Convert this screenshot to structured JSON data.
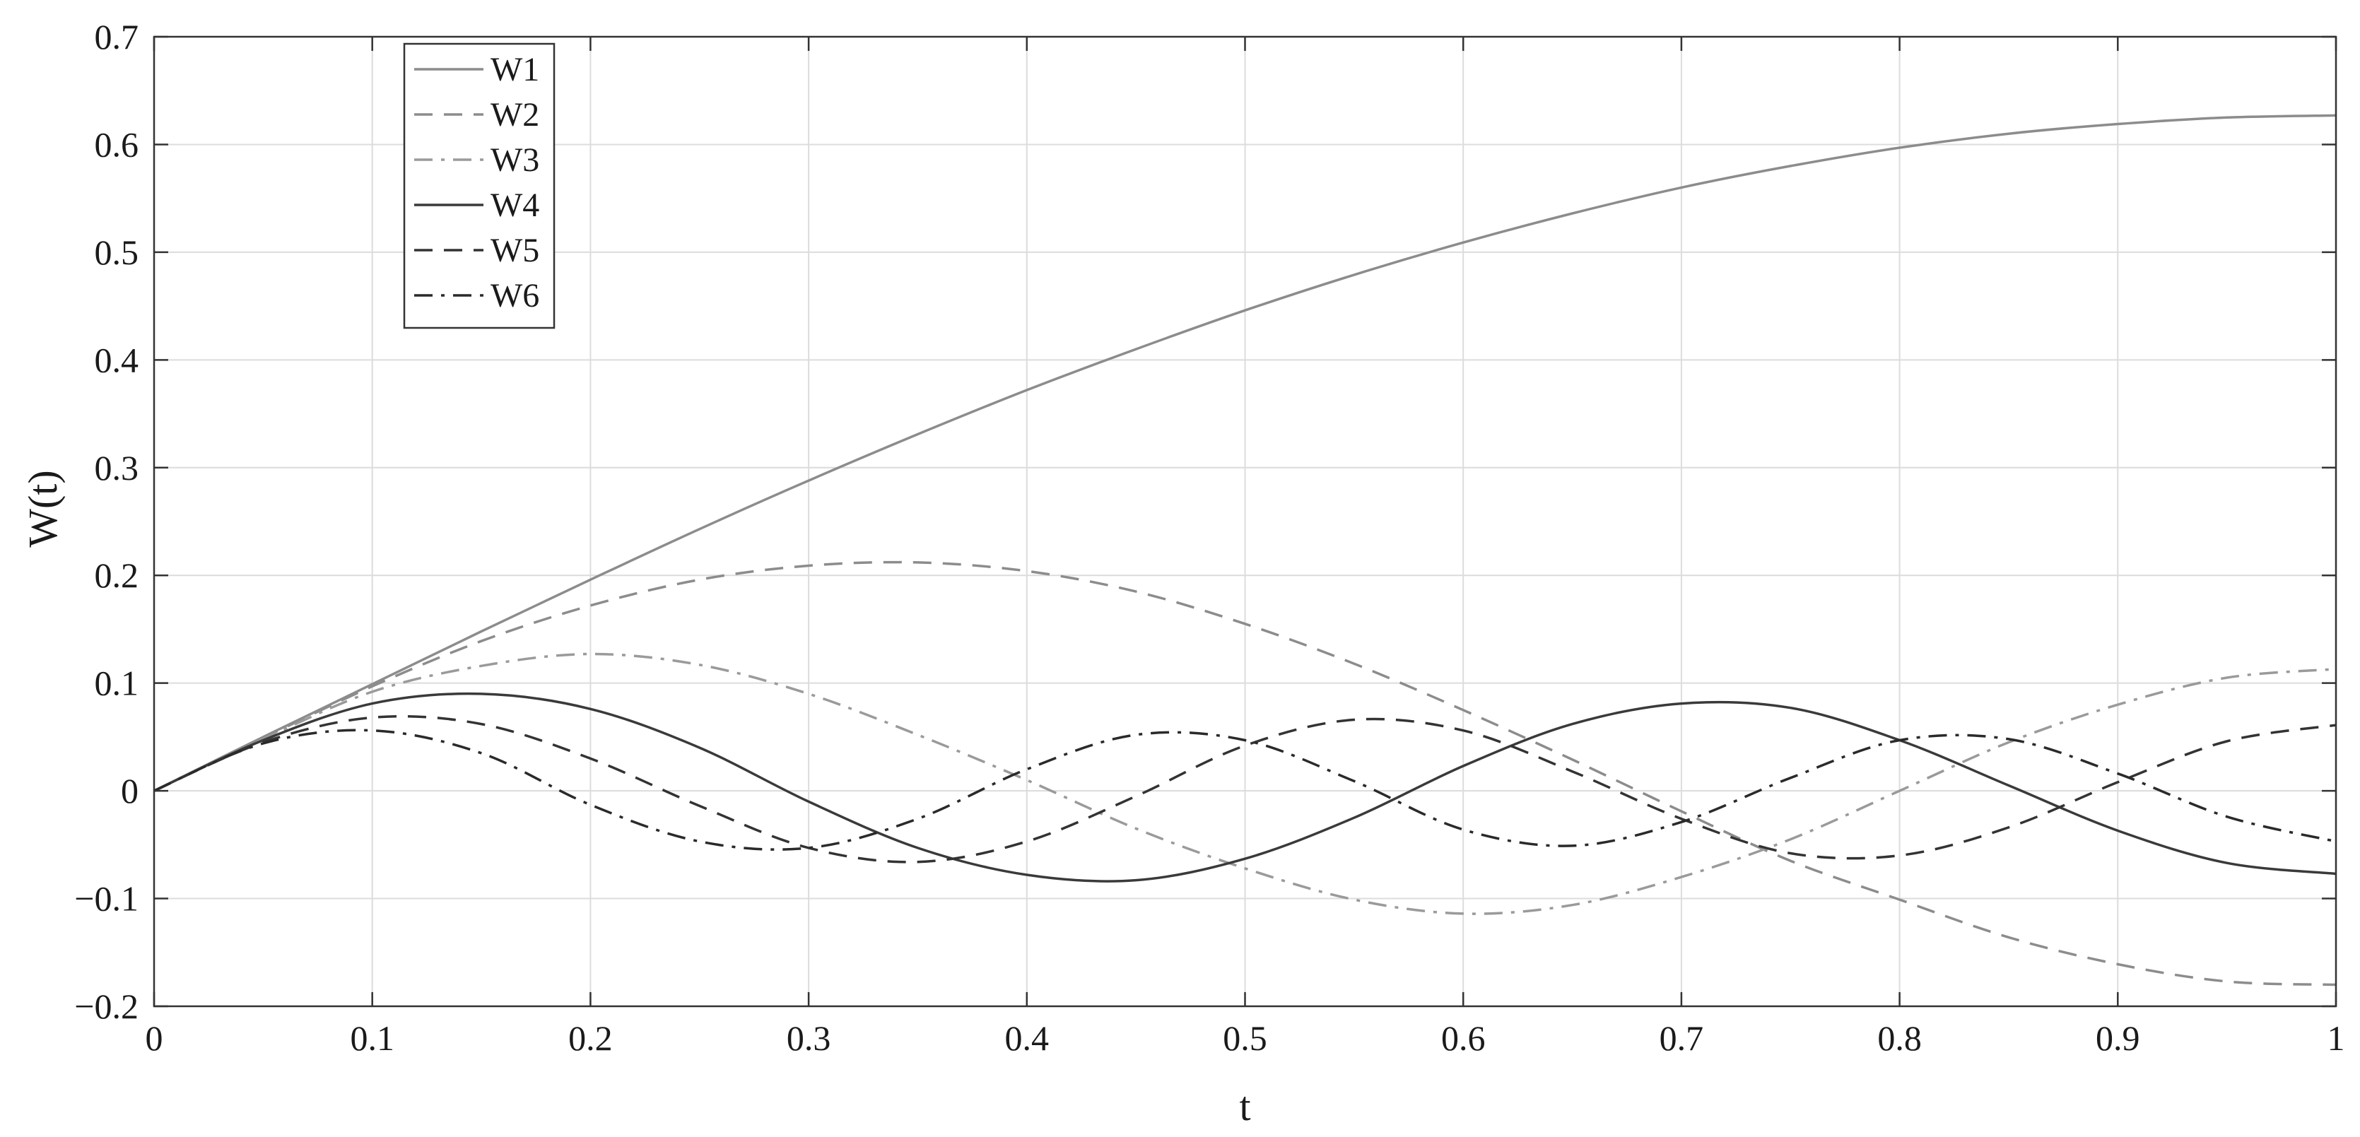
{
  "chart_data": {
    "type": "line",
    "title": "",
    "xlabel": "t",
    "ylabel": "W(t)",
    "xlim": [
      0,
      1
    ],
    "ylim": [
      -0.2,
      0.7
    ],
    "xticks": [
      0,
      0.1,
      0.2,
      0.3,
      0.4,
      0.5,
      0.6,
      0.7,
      0.8,
      0.9,
      1
    ],
    "xtick_labels": [
      "0",
      "0.1",
      "0.2",
      "0.3",
      "0.4",
      "0.5",
      "0.6",
      "0.7",
      "0.8",
      "0.9",
      "1"
    ],
    "yticks": [
      -0.2,
      -0.1,
      0,
      0.1,
      0.2,
      0.3,
      0.4,
      0.5,
      0.6,
      0.7
    ],
    "ytick_labels": [
      "−0.2",
      "−0.1",
      "0",
      "0.1",
      "0.2",
      "0.3",
      "0.4",
      "0.5",
      "0.6",
      "0.7"
    ],
    "grid": true,
    "legend_position": "top-left",
    "x": [
      0,
      0.05,
      0.1,
      0.15,
      0.2,
      0.25,
      0.3,
      0.35,
      0.4,
      0.45,
      0.5,
      0.55,
      0.6,
      0.65,
      0.7,
      0.75,
      0.8,
      0.85,
      0.9,
      0.95,
      1
    ],
    "series": [
      {
        "name": "W1",
        "color": "#8c8c8c",
        "dash": "solid",
        "values": [
          0,
          0.05,
          0.099,
          0.148,
          0.196,
          0.243,
          0.288,
          0.331,
          0.372,
          0.41,
          0.446,
          0.479,
          0.509,
          0.536,
          0.56,
          0.58,
          0.597,
          0.61,
          0.619,
          0.625,
          0.627
        ]
      },
      {
        "name": "W2",
        "color": "#8c8c8c",
        "dash": "dashed",
        "values": [
          0,
          0.049,
          0.097,
          0.139,
          0.172,
          0.196,
          0.209,
          0.212,
          0.204,
          0.185,
          0.155,
          0.118,
          0.075,
          0.029,
          -0.019,
          -0.065,
          -0.101,
          -0.136,
          -0.161,
          -0.177,
          -0.18
        ]
      },
      {
        "name": "W3",
        "color": "#9a9a9a",
        "dash": "dashdot",
        "values": [
          0,
          0.048,
          0.092,
          0.116,
          0.127,
          0.117,
          0.09,
          0.052,
          0.01,
          -0.035,
          -0.072,
          -0.101,
          -0.114,
          -0.106,
          -0.08,
          -0.045,
          0,
          0.045,
          0.08,
          0.105,
          0.113
        ]
      },
      {
        "name": "W4",
        "color": "#3a3a3a",
        "dash": "solid",
        "values": [
          0,
          0.047,
          0.081,
          0.09,
          0.076,
          0.04,
          -0.01,
          -0.053,
          -0.078,
          -0.083,
          -0.063,
          -0.025,
          0.023,
          0.062,
          0.081,
          0.077,
          0.047,
          0.005,
          -0.037,
          -0.067,
          -0.077
        ]
      },
      {
        "name": "W5",
        "color": "#333333",
        "dash": "dashed",
        "values": [
          0,
          0.045,
          0.068,
          0.062,
          0.03,
          -0.014,
          -0.053,
          -0.066,
          -0.047,
          -0.005,
          0.042,
          0.066,
          0.056,
          0.018,
          -0.026,
          -0.058,
          -0.06,
          -0.034,
          0.008,
          0.046,
          0.061
        ]
      },
      {
        "name": "W6",
        "color": "#2a2a2a",
        "dash": "dashdot",
        "values": [
          0,
          0.044,
          0.056,
          0.035,
          -0.013,
          -0.047,
          -0.053,
          -0.026,
          0.02,
          0.052,
          0.047,
          0.009,
          -0.036,
          -0.051,
          -0.029,
          0.012,
          0.047,
          0.048,
          0.016,
          -0.024,
          -0.047
        ]
      }
    ]
  }
}
